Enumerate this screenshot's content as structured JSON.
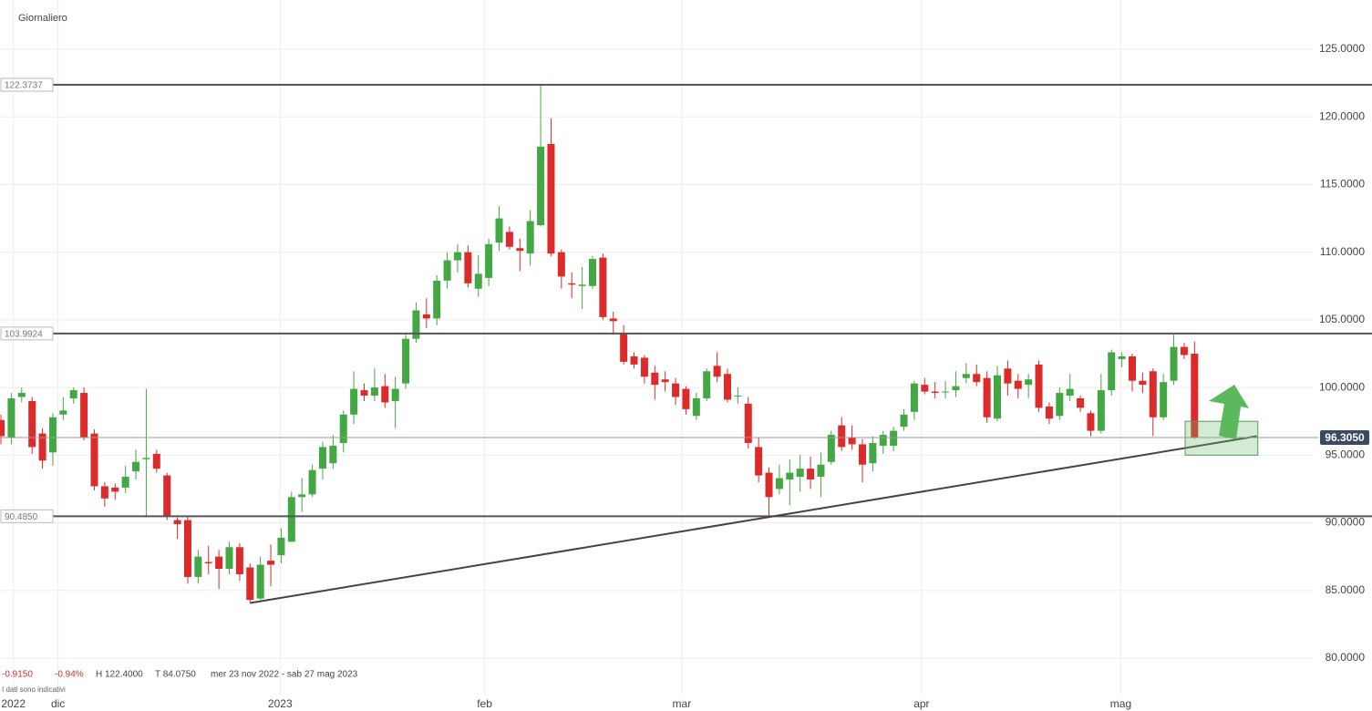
{
  "title": "Giornaliero",
  "chart_data": {
    "type": "candlestick",
    "up_color": "#43a843",
    "down_color": "#dd2a2a",
    "candles": {
      "open": [
        97.6,
        96.3,
        99.3,
        99.0,
        96.6,
        95.2,
        98.0,
        99.2,
        99.6,
        96.6,
        92.7,
        92.6,
        92.6,
        93.8,
        94.7,
        95.1,
        93.5,
        90.2,
        90.2,
        86.0,
        87.1,
        87.5,
        86.6,
        88.2,
        86.7,
        84.4,
        87.2,
        87.6,
        88.6,
        91.9,
        92.1,
        94.0,
        94.4,
        95.9,
        98.0,
        99.8,
        99.4,
        100.1,
        99.0,
        100.3,
        103.6,
        105.4,
        105.1,
        107.9,
        109.4,
        110.0,
        107.3,
        108.1,
        110.7,
        111.5,
        110.3,
        109.9,
        112,
        118.0,
        110.0,
        107.7,
        107.5,
        107.5,
        109.6,
        105.1,
        104.0,
        102.3,
        102.2,
        101.1,
        100.6,
        100.3,
        99.9,
        97.9,
        99.2,
        101.6,
        101,
        99.4,
        98.8,
        95.6,
        93.7,
        92.5,
        93.2,
        93.4,
        94.0,
        93.4,
        94.5,
        97.2,
        96.3,
        95.8,
        94.4,
        95.7,
        95.7,
        97.1,
        98.2,
        100.2,
        99.7,
        99.7,
        99.8,
        100.7,
        101,
        100.7,
        97.7,
        101.4,
        100.5,
        100.2,
        101.7,
        98.6,
        97.9,
        99.4,
        99.2,
        98.1,
        96.8,
        99.8,
        102.1,
        102.3,
        100.5,
        101.2,
        97.8,
        100.5,
        103,
        102.5
      ],
      "high": [
        98,
        99.6,
        100,
        99.3,
        97,
        98.1,
        99.3,
        100,
        100,
        96.9,
        93,
        92.9,
        94.2,
        95.4,
        99.9,
        95.4,
        93.7,
        90.4,
        90.5,
        88,
        88.3,
        88,
        88.6,
        88.5,
        87,
        87.5,
        88.4,
        89.6,
        92.3,
        93.3,
        94.3,
        96,
        96.5,
        98.3,
        101.2,
        100.3,
        101.4,
        101,
        100.8,
        103.9,
        106.3,
        106.6,
        108.3,
        110,
        110.6,
        110.5,
        109.8,
        111,
        113.4,
        111.9,
        111,
        113.1,
        122.4,
        119.9,
        110.2,
        108.5,
        108.9,
        109.7,
        109.9,
        105.6,
        104.6,
        102.6,
        102.4,
        101.6,
        101.2,
        100.7,
        100.1,
        99.6,
        101.4,
        102.6,
        101.4,
        100,
        99.3,
        96.3,
        94.1,
        94.3,
        94.7,
        95,
        94.9,
        95.2,
        96.8,
        97.8,
        97.2,
        96.2,
        96.4,
        96.8,
        97.1,
        98.4,
        100.5,
        100.7,
        100.4,
        100.5,
        101.2,
        101.8,
        101.7,
        101.2,
        101.6,
        102,
        101,
        101,
        102,
        98.9,
        100,
        101,
        99.4,
        98.3,
        101,
        102.8,
        102.6,
        102.5,
        101.1,
        101.4,
        101,
        103.9,
        103.3,
        103.4
      ],
      "low": [
        95.8,
        95.8,
        98.9,
        95.1,
        94,
        94.2,
        97.6,
        98.8,
        96.1,
        92.4,
        91.2,
        91.7,
        92.2,
        93.2,
        90.4,
        93.7,
        90.2,
        88.8,
        85.5,
        85.5,
        86.2,
        85.1,
        86.2,
        85.7,
        84.075,
        84.3,
        85.3,
        87,
        88.6,
        90.8,
        91.9,
        93.2,
        94,
        95.2,
        97.3,
        99,
        99,
        98.5,
        97,
        99.9,
        103.3,
        104.4,
        104.6,
        107.3,
        108.5,
        107.4,
        106.7,
        107.5,
        110.1,
        110.2,
        108.6,
        109,
        111.9,
        109.7,
        107.3,
        106.6,
        105.8,
        107.3,
        105,
        103.9,
        101.7,
        101.4,
        100.3,
        99.1,
        99.7,
        98.7,
        98,
        97.6,
        99,
        100.4,
        98.9,
        98.8,
        95.5,
        93,
        90.5,
        92.1,
        91.3,
        92.3,
        92.5,
        91.9,
        94.3,
        95.3,
        95.4,
        93,
        93.8,
        95.1,
        95.3,
        96.8,
        97.6,
        99.5,
        99.2,
        99.2,
        99.3,
        100.3,
        100.1,
        97.4,
        97.5,
        99.4,
        99.2,
        99.2,
        98.2,
        97.3,
        97.6,
        99,
        98.2,
        96.4,
        96.6,
        99.4,
        101.5,
        99.7,
        99.6,
        96.4,
        97.6,
        100.2,
        102.1,
        96.2
      ],
      "close": [
        96.4,
        99.2,
        99.6,
        95.6,
        94.6,
        97.8,
        98.3,
        99.8,
        96.3,
        92.7,
        91.8,
        92.3,
        93.4,
        94.5,
        94.8,
        94.0,
        90.5,
        89.9,
        86.0,
        87.5,
        87.0,
        86.6,
        88.2,
        86.2,
        84.3,
        86.9,
        86.9,
        88.9,
        91.9,
        92.1,
        93.9,
        95.6,
        95.7,
        98.0,
        99.9,
        99.4,
        100,
        98.9,
        99.9,
        103.6,
        105.7,
        105.1,
        107.9,
        109.4,
        110,
        107.7,
        108.4,
        110.6,
        112.5,
        110.4,
        110.1,
        112.3,
        117.8,
        109.9,
        108.2,
        107.6,
        107.6,
        109.5,
        105.2,
        104.9,
        101.9,
        101.7,
        100.8,
        100.2,
        100.4,
        99.3,
        98.4,
        99.2,
        101.2,
        100.8,
        99.1,
        99.4,
        95.9,
        93.5,
        91.9,
        93.3,
        93.7,
        94.0,
        93.2,
        94.3,
        96.5,
        95.6,
        95.8,
        94.3,
        95.9,
        96.5,
        96.8,
        98.0,
        100.3,
        99.7,
        99.6,
        99.7,
        100.1,
        101,
        100.4,
        97.8,
        100.9,
        100.3,
        99.9,
        100.6,
        98.5,
        97.7,
        99.6,
        99.9,
        98.5,
        96.8,
        99.8,
        102.6,
        102.3,
        100.5,
        100.2,
        97.8,
        100.4,
        103,
        102.4,
        96.3
      ]
    },
    "xlim": [
      -0.09,
      132.1
    ],
    "ylim": [
      76.09,
      128.64
    ],
    "xticks": [
      {
        "value": 1.2,
        "label": "2022"
      },
      {
        "value": 5.5,
        "label": "dic"
      },
      {
        "value": 26.9,
        "label": "2023"
      },
      {
        "value": 46.6,
        "label": "feb"
      },
      {
        "value": 65.6,
        "label": "mar"
      },
      {
        "value": 88.7,
        "label": "apr"
      },
      {
        "value": 107.9,
        "label": "mag"
      }
    ],
    "yticks": [
      {
        "value": 80,
        "label": "80.0000"
      },
      {
        "value": 85,
        "label": "85.0000"
      },
      {
        "value": 90,
        "label": "90.0000"
      },
      {
        "value": 95,
        "label": "95.0000"
      },
      {
        "value": 100,
        "label": "100.0000"
      },
      {
        "value": 105,
        "label": "105.0000"
      },
      {
        "value": 110,
        "label": "110.0000"
      },
      {
        "value": 115,
        "label": "115.0000"
      },
      {
        "value": 120,
        "label": "120.0000"
      },
      {
        "value": 125,
        "label": "125.0000"
      }
    ],
    "grid": true,
    "levels": [
      {
        "value": 122.3737,
        "label": "122.3737"
      },
      {
        "value": 103.9924,
        "label": "103.9924"
      },
      {
        "value": 90.485,
        "label": "90.4850"
      }
    ],
    "last_price": {
      "value": 96.305,
      "label": "96.3050"
    },
    "trendline": {
      "x": [
        24,
        121
      ],
      "y": [
        84.075,
        96.4
      ]
    },
    "target_zone": {
      "x": [
        114.1,
        121.1
      ],
      "y": [
        95.0,
        97.5
      ]
    },
    "footer": {
      "change": "-0.9150",
      "change_pct": "-0.94%",
      "high": "H 122.4000",
      "low": "T 84.0750",
      "range": "mer 23 nov 2022 - sab 27 mag 2023",
      "note": "I dati sono indicativi"
    }
  }
}
